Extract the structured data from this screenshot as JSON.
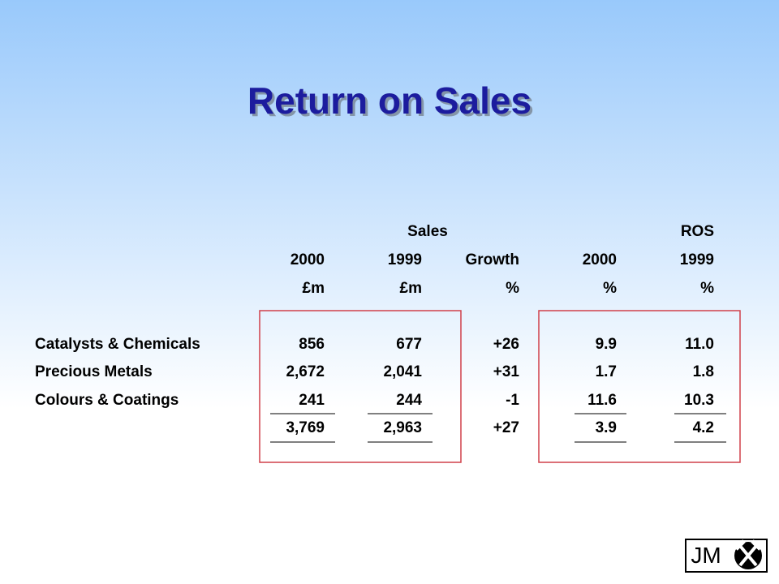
{
  "title": "Return on Sales",
  "table": {
    "group_headers": [
      "Sales",
      "ROS"
    ],
    "columns": [
      "2000",
      "1999",
      "Growth",
      "2000",
      "1999"
    ],
    "units": [
      "£m",
      "£m",
      "%",
      "%",
      "%"
    ],
    "rows": [
      {
        "label": "Catalysts & Chemicals",
        "cells": [
          "856",
          "677",
          "+26",
          "9.9",
          "11.0"
        ]
      },
      {
        "label": "Precious Metals",
        "cells": [
          "2,672",
          "2,041",
          "+31",
          "1.7",
          "1.8"
        ]
      },
      {
        "label": "Colours & Coatings",
        "cells": [
          "241",
          "244",
          "-1",
          "11.6",
          "10.3"
        ]
      }
    ],
    "total": [
      "3,769",
      "2,963",
      "+27",
      "3.9",
      "4.2"
    ]
  },
  "logo": "JM"
}
